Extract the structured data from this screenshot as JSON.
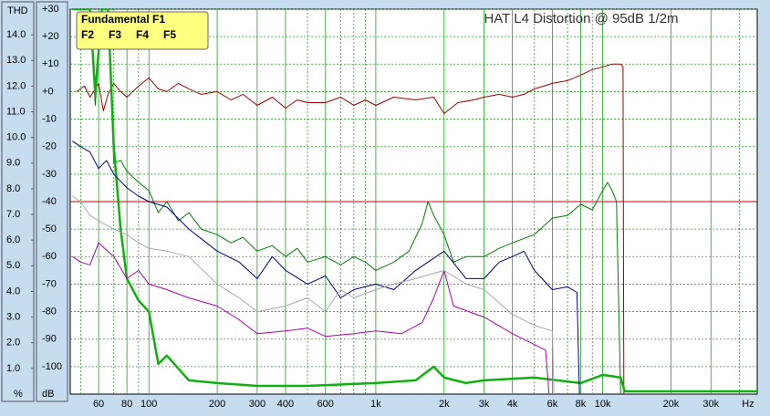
{
  "chart_data": {
    "type": "line",
    "title": "HAT L4 Distortion @ 95dB 1/2m",
    "x_scale": "log",
    "xlim": [
      45,
      48000
    ],
    "xticks": [
      60,
      80,
      100,
      200,
      300,
      400,
      600,
      {
        "value": 1000,
        "label": "1k"
      },
      {
        "value": 2000,
        "label": "2k"
      },
      {
        "value": 3000,
        "label": "3k"
      },
      {
        "value": 4000,
        "label": "4k"
      },
      {
        "value": 6000,
        "label": "6k"
      },
      {
        "value": 8000,
        "label": "8k"
      },
      {
        "value": 10000,
        "label": "10k"
      },
      {
        "value": 20000,
        "label": "20k"
      },
      {
        "value": 30000,
        "label": "30k"
      }
    ],
    "xminor_grid": [
      50,
      70,
      90,
      500,
      700,
      800,
      900,
      5000,
      7000,
      9000,
      40000
    ],
    "x_unit": "Hz",
    "ylabel": "dB",
    "ylim": [
      -110,
      30
    ],
    "yticks": [
      {
        "value": 30,
        "label": "+30"
      },
      {
        "value": 20,
        "label": "+20"
      },
      {
        "value": 10,
        "label": "+10"
      },
      {
        "value": 0,
        "label": "+0"
      },
      -10,
      -20,
      -30,
      -40,
      -50,
      -60,
      -70,
      -80,
      -90,
      -100
    ],
    "y2label": "THD",
    "y2unit": "%",
    "y2lim": [
      0,
      15
    ],
    "y2ticks": [
      {
        "value": 14,
        "label": "14.0"
      },
      {
        "value": 13,
        "label": "13.0"
      },
      {
        "value": 12,
        "label": "12.0"
      },
      {
        "value": 11,
        "label": "11.0"
      },
      {
        "value": 10,
        "label": "10.0"
      },
      {
        "value": 9,
        "label": "9.0"
      },
      {
        "value": 8,
        "label": "8.0"
      },
      {
        "value": 7,
        "label": "7.0"
      },
      {
        "value": 6,
        "label": "6.0"
      },
      {
        "value": 5,
        "label": "5.0"
      },
      {
        "value": 4,
        "label": "4.0"
      },
      {
        "value": 3,
        "label": "3.0"
      },
      {
        "value": 2,
        "label": "2.0"
      },
      {
        "value": 1,
        "label": "1.0"
      }
    ],
    "grid": true,
    "legend": "upper left",
    "reference_lines": [
      {
        "value": -40,
        "color": "#c00000"
      }
    ],
    "series": [
      {
        "name": "Fundamental F1",
        "color": "#a00000",
        "width": 1,
        "x": [
          48,
          52,
          55,
          58,
          60,
          63,
          66,
          70,
          75,
          80,
          90,
          100,
          110,
          120,
          135,
          150,
          170,
          200,
          230,
          260,
          300,
          350,
          400,
          450,
          500,
          600,
          700,
          800,
          900,
          1000,
          1200,
          1500,
          1800,
          2000,
          2300,
          2700,
          3000,
          3500,
          4000,
          4500,
          5000,
          5500,
          6000,
          7000,
          8000,
          9000,
          10000,
          11000,
          12000,
          12300,
          12400
        ],
        "values": [
          0,
          2,
          -2,
          1,
          3,
          -7,
          -1,
          3,
          0,
          -2,
          2,
          5,
          1,
          0,
          3,
          1,
          -1,
          0,
          -3,
          -1,
          -5,
          -2,
          -6,
          -3,
          -4,
          -4,
          -2,
          -5,
          -3,
          -5,
          -2,
          -3,
          -2,
          -8,
          -4,
          -3,
          -2,
          -1,
          -2,
          -1,
          1,
          2,
          3,
          4,
          6,
          8,
          9,
          10,
          10,
          9,
          -110
        ]
      },
      {
        "name": "F2",
        "color": "#008000",
        "width": 1,
        "x": [
          46,
          50,
          55,
          58,
          62,
          66,
          70,
          75,
          80,
          90,
          100,
          110,
          120,
          135,
          150,
          170,
          200,
          230,
          260,
          300,
          350,
          400,
          450,
          500,
          600,
          700,
          800,
          900,
          1000,
          1200,
          1400,
          1600,
          1700,
          1800,
          2000,
          2200,
          2500,
          3000,
          3500,
          4000,
          5000,
          6000,
          7000,
          8000,
          9000,
          10000,
          10500,
          11000,
          11500,
          12000
        ],
        "values": [
          30,
          30,
          30,
          -5,
          30,
          30,
          -26,
          -25,
          -29,
          -33,
          -36,
          -44,
          -40,
          -47,
          -44,
          -50,
          -52,
          -55,
          -53,
          -58,
          -56,
          -60,
          -57,
          -62,
          -60,
          -63,
          -60,
          -62,
          -65,
          -62,
          -58,
          -48,
          -40,
          -45,
          -52,
          -62,
          -60,
          -60,
          -57,
          -55,
          -52,
          -46,
          -45,
          -41,
          -43,
          -36,
          -33,
          -36,
          -40,
          -110
        ]
      },
      {
        "color": "#10b010",
        "width": 2.5,
        "x": [
          46,
          50,
          55,
          58,
          62,
          66,
          70,
          75,
          80,
          90,
          100,
          110,
          120,
          150,
          200,
          300,
          500,
          1000,
          1500,
          1800,
          2000,
          2500,
          3000,
          5000,
          8000,
          10000,
          12000,
          12500,
          20000,
          48000
        ],
        "values": [
          30,
          30,
          30,
          -1,
          30,
          30,
          -20,
          -50,
          -68,
          -76,
          -80,
          -99,
          -96,
          -105,
          -106,
          -107,
          -107,
          -106,
          -105,
          -100,
          -104,
          -106,
          -105,
          -104,
          -106,
          -103,
          -104,
          -109,
          -109,
          -109
        ]
      },
      {
        "name": "F3",
        "color": "#000080",
        "width": 1,
        "x": [
          46,
          50,
          55,
          60,
          65,
          70,
          80,
          90,
          100,
          120,
          150,
          200,
          250,
          300,
          350,
          400,
          500,
          600,
          700,
          800,
          1000,
          1200,
          1500,
          2000,
          2500,
          3000,
          3500,
          4000,
          4500,
          5000,
          6000,
          7000,
          7700,
          7900
        ],
        "values": [
          -18,
          -20,
          -22,
          -28,
          -25,
          -30,
          -35,
          -38,
          -40,
          -42,
          -50,
          -58,
          -62,
          -68,
          -60,
          -65,
          -70,
          -67,
          -75,
          -72,
          -70,
          -72,
          -65,
          -58,
          -68,
          -68,
          -62,
          -60,
          -58,
          -65,
          -72,
          -71,
          -73,
          -110
        ]
      },
      {
        "name": "F4",
        "color": "#b000b0",
        "width": 1,
        "x": [
          46,
          50,
          55,
          60,
          70,
          80,
          90,
          100,
          120,
          150,
          200,
          250,
          300,
          400,
          500,
          600,
          800,
          1000,
          1300,
          1600,
          1800,
          2000,
          2200,
          3000,
          4000,
          5000,
          5600,
          5800
        ],
        "values": [
          -60,
          -62,
          -63,
          -55,
          -60,
          -68,
          -65,
          -70,
          -72,
          -75,
          -78,
          -83,
          -88,
          -87,
          -86,
          -89,
          -88,
          -87,
          -88,
          -84,
          -75,
          -65,
          -78,
          -82,
          -88,
          -92,
          -94,
          -110
        ]
      },
      {
        "name": "F5",
        "color": "#a8a8a8",
        "width": 1,
        "x": [
          46,
          50,
          55,
          60,
          70,
          80,
          90,
          100,
          120,
          150,
          200,
          250,
          300,
          400,
          500,
          600,
          700,
          800,
          1000,
          1200,
          1500,
          2000,
          2500,
          3000,
          4000,
          5000,
          6000,
          6100
        ],
        "values": [
          -38,
          -40,
          -45,
          -47,
          -50,
          -52,
          -55,
          -57,
          -58,
          -60,
          -70,
          -75,
          -80,
          -78,
          -75,
          -80,
          -72,
          -75,
          -72,
          -70,
          -68,
          -65,
          -70,
          -72,
          -81,
          -85,
          -87,
          -110
        ]
      }
    ]
  }
}
